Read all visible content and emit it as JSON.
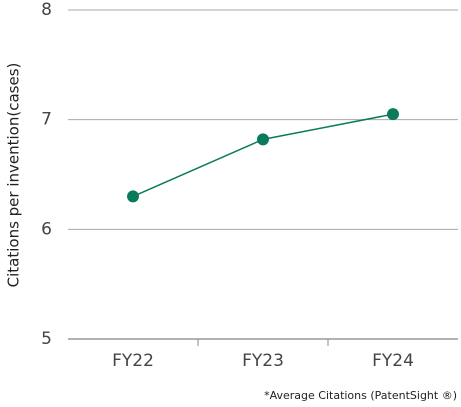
{
  "chart_data": {
    "type": "line",
    "y_label": "Citations per invention(cases)",
    "note": "*Average Citations (PatentSight ®)",
    "categories": [
      "FY22",
      "FY23",
      "FY24"
    ],
    "values": [
      6.3,
      6.82,
      7.05
    ],
    "color": "#0b7a5c",
    "ylim": [
      5,
      8
    ],
    "yticks": [
      5,
      6,
      7,
      8
    ],
    "grid": true
  }
}
